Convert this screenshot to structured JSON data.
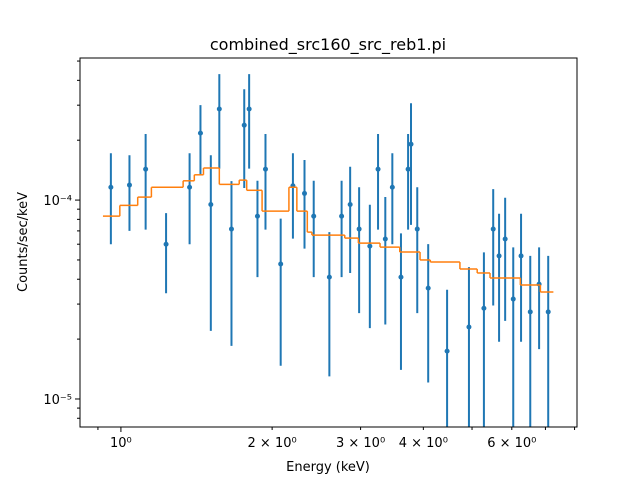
{
  "chart_data": {
    "type": "errorbar",
    "title": "combined_src160_src_reb1.pi",
    "xlabel": "Energy (keV)",
    "ylabel": "Counts/sec/keV",
    "xscale": "log",
    "yscale": "log",
    "xlim": [
      0.829,
      8.09
    ],
    "ylim": [
      7.23e-06,
      0.000518
    ],
    "xticks": [
      {
        "value": 1,
        "label": "10⁰"
      },
      {
        "value": 2,
        "label": "2 × 10⁰"
      },
      {
        "value": 3,
        "label": "3 × 10⁰"
      },
      {
        "value": 4,
        "label": "4 × 10⁰"
      },
      {
        "value": 6,
        "label": "6 × 10⁰"
      }
    ],
    "xminorticks": [
      0.9,
      5,
      7,
      8
    ],
    "yticks": [
      {
        "value": 1e-05,
        "label": "10⁻⁵"
      },
      {
        "value": 0.0001,
        "label": "10⁻⁴"
      }
    ],
    "yminorticks": [
      8e-06,
      9e-06,
      2e-05,
      3e-05,
      4e-05,
      5e-05,
      6e-05,
      7e-05,
      8e-05,
      9e-05,
      0.0002,
      0.0003,
      0.0004,
      0.0005
    ],
    "series": [
      {
        "color": "#1f77b4",
        "x": [
          0.955,
          1.04,
          1.12,
          1.23,
          1.37,
          1.44,
          1.51,
          1.57,
          1.66,
          1.76,
          1.8,
          1.87,
          1.94,
          2.08,
          2.2,
          2.32,
          2.42,
          2.6,
          2.75,
          2.86,
          2.98,
          3.13,
          3.25,
          3.36,
          3.47,
          3.61,
          3.73,
          3.78,
          3.89,
          4.09,
          4.46,
          4.93,
          5.28,
          5.51,
          5.66,
          5.82,
          6.04,
          6.26,
          6.53,
          6.8,
          7.09
        ],
        "values": [
          0.000116,
          0.000119,
          0.000143,
          6e-05,
          0.000116,
          0.000217,
          9.5e-05,
          0.000287,
          7.15e-05,
          0.000238,
          0.000287,
          8.3e-05,
          0.000143,
          4.77e-05,
          0.000118,
          0.000108,
          8.3e-05,
          4.1e-05,
          8.3e-05,
          9.5e-05,
          7.15e-05,
          5.87e-05,
          0.000143,
          6.37e-05,
          0.000116,
          4.1e-05,
          0.000143,
          0.000191,
          7.15e-05,
          3.61e-05,
          1.74e-05,
          2.3e-05,
          2.86e-05,
          7.15e-05,
          5.24e-05,
          6.37e-05,
          3.18e-05,
          5.24e-05,
          2.74e-05,
          3.78e-05,
          2.74e-05
        ],
        "errors": [
          5.6e-05,
          4.9e-05,
          7.2e-05,
          2.6e-05,
          5.6e-05,
          8.3e-05,
          7.3e-05,
          0.000143,
          5.3e-05,
          0.000123,
          0.000143,
          4.2e-05,
          7.2e-05,
          3.3e-05,
          5.4e-05,
          5.1e-05,
          4.2e-05,
          2.8e-05,
          4.2e-05,
          5.2e-05,
          4.45e-05,
          3.6e-05,
          7.2e-05,
          4e-05,
          5.6e-05,
          2.7e-05,
          7.2e-05,
          0.000116,
          4.45e-05,
          2.4e-05,
          1.8e-05,
          2.3e-05,
          2.6e-05,
          4.2e-05,
          3.3e-05,
          3.9e-05,
          2.6e-05,
          3.3e-05,
          2.5e-05,
          2e-05,
          2.5e-05
        ]
      },
      {
        "color": "#ff7f0e",
        "kind": "step",
        "bins": [
          0.921,
          0.995,
          1.08,
          1.15,
          1.33,
          1.4,
          1.46,
          1.57,
          1.72,
          1.78,
          1.91,
          2.16,
          2.24,
          2.35,
          2.4,
          2.79,
          2.97,
          3.28,
          3.59,
          3.94,
          4.13,
          4.73,
          5.12,
          5.43,
          6.24,
          6.84,
          7.26
        ],
        "values": [
          8.3e-05,
          9.4e-05,
          0.0001035,
          0.000116,
          0.000125,
          0.000134,
          0.000145,
          0.00012,
          0.000126,
          0.000112,
          8.8e-05,
          0.000116,
          8.8e-05,
          6.9e-05,
          6.67e-05,
          6.44e-05,
          6.08e-05,
          5.8e-05,
          5.48e-05,
          5e-05,
          4.88e-05,
          4.5e-05,
          4.3e-05,
          4.06e-05,
          3.74e-05,
          3.45e-05
        ]
      }
    ]
  }
}
